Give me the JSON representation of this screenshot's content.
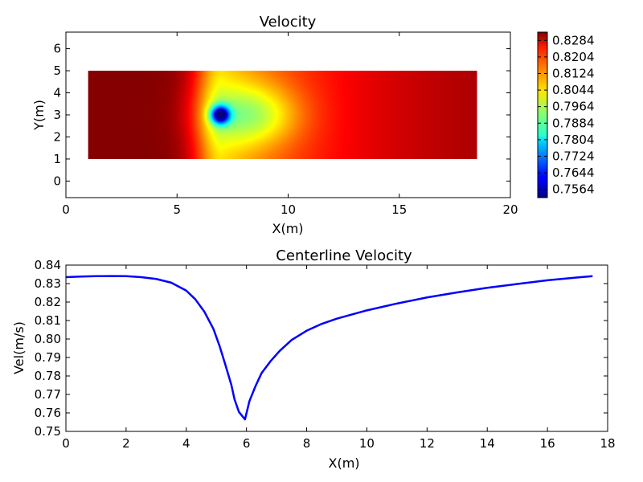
{
  "chart_data": [
    {
      "type": "heatmap",
      "title": "Velocity",
      "xlabel": "X(m)",
      "ylabel": "Y(m)",
      "xlim": [
        0,
        20
      ],
      "ylim": [
        -0.75,
        6.75
      ],
      "xticks": [
        0,
        5,
        10,
        15,
        20
      ],
      "yticks": [
        0,
        1,
        2,
        3,
        4,
        5,
        6
      ],
      "xtick_labels": [
        "0",
        "5",
        "10",
        "15",
        "20"
      ],
      "ytick_labels": [
        "0",
        "1",
        "2",
        "3",
        "4",
        "5",
        "6"
      ],
      "domain": {
        "x": [
          1,
          18.5
        ],
        "y": [
          1,
          5
        ]
      },
      "obstacle_center": [
        7,
        3
      ],
      "colormap": "jet",
      "colorbar": {
        "range": [
          0.7524,
          0.8324
        ],
        "ticks": [
          0.7564,
          0.7644,
          0.7724,
          0.7804,
          0.7884,
          0.7964,
          0.8044,
          0.8124,
          0.8204,
          0.8284
        ],
        "tick_labels": [
          "0.7564",
          "0.7644",
          "0.7724",
          "0.7804",
          "0.7884",
          "0.7964",
          "0.8044",
          "0.8124",
          "0.8204",
          "0.8284"
        ]
      },
      "grid": false
    },
    {
      "type": "line",
      "title": "Centerline Velocity",
      "xlabel": "X(m)",
      "ylabel": "Vel(m/s)",
      "xlim": [
        0,
        18
      ],
      "ylim": [
        0.75,
        0.84
      ],
      "xticks": [
        0,
        2,
        4,
        6,
        8,
        10,
        12,
        14,
        16,
        18
      ],
      "yticks": [
        0.75,
        0.76,
        0.77,
        0.78,
        0.79,
        0.8,
        0.81,
        0.82,
        0.83,
        0.84
      ],
      "xtick_labels": [
        "0",
        "2",
        "4",
        "6",
        "8",
        "10",
        "12",
        "14",
        "16",
        "18"
      ],
      "ytick_labels": [
        "0.75",
        "0.76",
        "0.77",
        "0.78",
        "0.79",
        "0.80",
        "0.81",
        "0.82",
        "0.83",
        "0.84"
      ],
      "grid": false,
      "series": [
        {
          "color": "#0000ff",
          "x": [
            0,
            0.5,
            1,
            1.5,
            2,
            2.5,
            3,
            3.5,
            4,
            4.3,
            4.6,
            4.9,
            5.1,
            5.3,
            5.5,
            5.6,
            5.75,
            5.95,
            6.1,
            6.3,
            6.5,
            6.8,
            7.1,
            7.5,
            8,
            8.5,
            9,
            10,
            11,
            12,
            13,
            14,
            15,
            16,
            17,
            17.5
          ],
          "y": [
            0.8335,
            0.8338,
            0.834,
            0.8341,
            0.834,
            0.8335,
            0.8325,
            0.8305,
            0.8262,
            0.8215,
            0.8148,
            0.8055,
            0.7965,
            0.786,
            0.775,
            0.7675,
            0.7605,
            0.7565,
            0.7665,
            0.7745,
            0.7815,
            0.788,
            0.7935,
            0.7995,
            0.8045,
            0.8082,
            0.811,
            0.8155,
            0.8192,
            0.8225,
            0.8252,
            0.8277,
            0.8298,
            0.8318,
            0.8333,
            0.834
          ]
        }
      ]
    }
  ]
}
